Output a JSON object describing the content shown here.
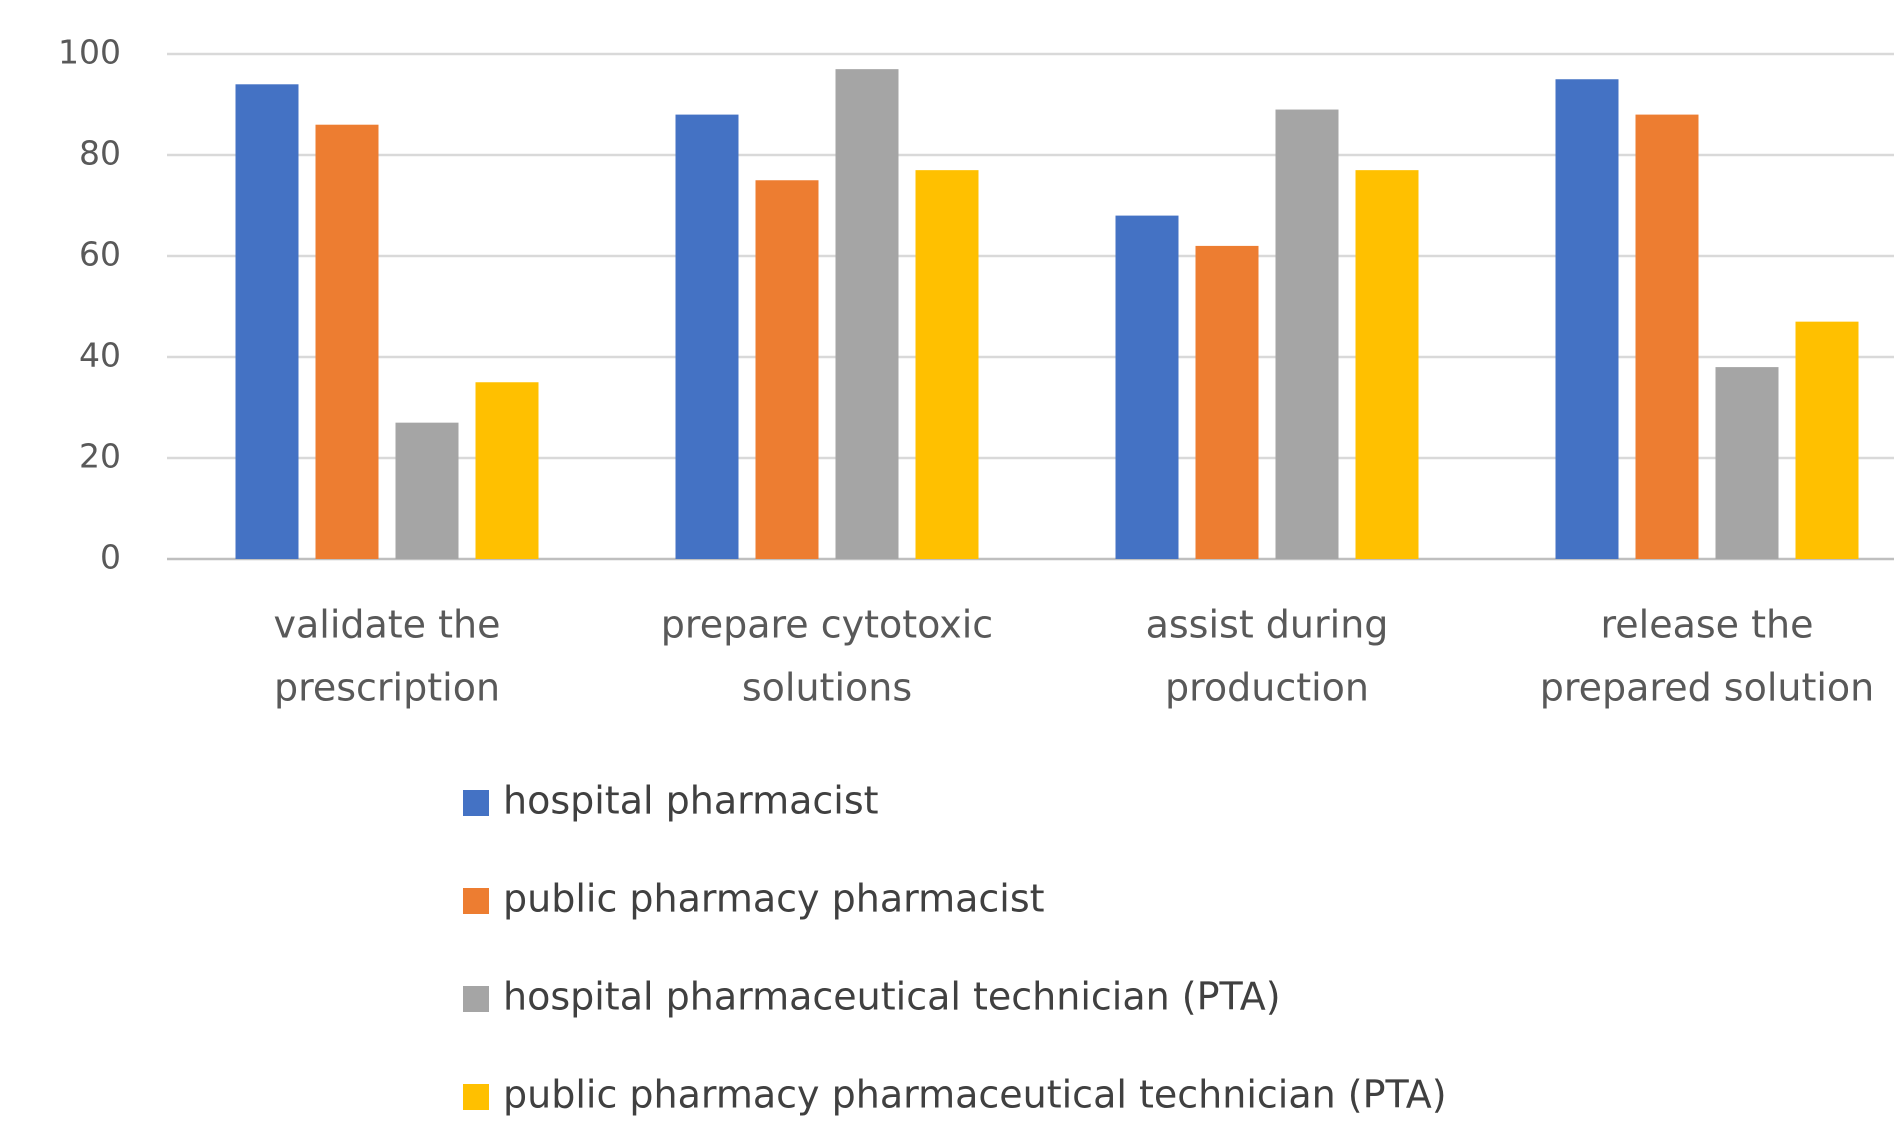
{
  "chart_data": {
    "type": "bar",
    "categories": [
      [
        "validate the",
        "prescription"
      ],
      [
        "prepare cytotoxic",
        "solutions"
      ],
      [
        "assist during",
        "production"
      ],
      [
        "release the",
        "prepared solution"
      ]
    ],
    "series": [
      {
        "name": "hospital pharmacist",
        "color": "#4472c4",
        "values": [
          94,
          88,
          68,
          95
        ]
      },
      {
        "name": "public pharmacy pharmacist",
        "color": "#ed7d31",
        "values": [
          86,
          75,
          62,
          88
        ]
      },
      {
        "name": "hospital pharmaceutical technician (PTA)",
        "color": "#a5a5a5",
        "values": [
          27,
          97,
          89,
          38
        ]
      },
      {
        "name": "public pharmacy pharmaceutical technician (PTA)",
        "color": "#ffc000",
        "values": [
          35,
          77,
          77,
          47
        ]
      }
    ],
    "ylim": [
      0,
      100
    ],
    "yticks": [
      0,
      20,
      40,
      60,
      80,
      100
    ],
    "grid": true,
    "legend": "bottom"
  }
}
